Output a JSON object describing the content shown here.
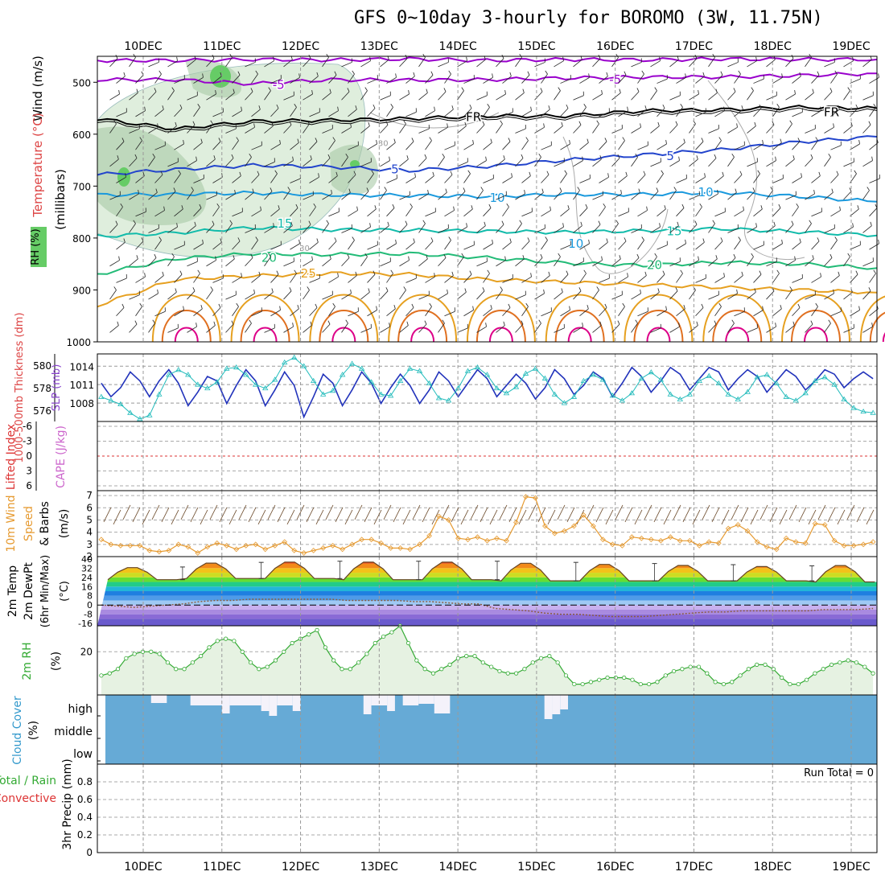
{
  "title": "GFS 0~10day 3-hourly for BOROMO (3W, 11.75N)",
  "colors": {
    "rh_fill": "#dfeedd",
    "rh_fill_dark": "#a9c9a6",
    "rh_green": "#66cc66",
    "isotherm_purple": "#9900cc",
    "isotherm_black": "#000000",
    "isotherm_blue": "#2244cc",
    "isotherm_lightblue": "#1a99dd",
    "isotherm_teal": "#11bbaa",
    "isotherm_green": "#22bb77",
    "isotherm_orange": "#e6a020",
    "isotherm_darkorange": "#e07020",
    "isotherm_magenta": "#dd0088",
    "thickness": "#2233bb",
    "slp": "#22bbbb",
    "wind10": "#e69a30",
    "cape_line": "#dd3333",
    "cloud_blue": "#66aad6",
    "cloud_white": "#f4f2fa",
    "rh2m_fill": "#e6f2e2",
    "rh2m_line": "#33aa33"
  },
  "dates": [
    "10DEC",
    "11DEC",
    "12DEC",
    "13DEC",
    "14DEC",
    "15DEC",
    "16DEC",
    "17DEC",
    "18DEC",
    "19DEC"
  ],
  "chart_data": [
    {
      "type": "area",
      "panel": "cross-section",
      "axis_title": "(millibars)",
      "left_labels": [
        "Wind (m/s)",
        "Temperature (°C)",
        "RH (%)"
      ],
      "yticks": [
        500,
        600,
        700,
        800,
        900,
        1000
      ],
      "ylim": [
        450,
        1000
      ],
      "isotherm_labels": [
        {
          "text": "-5",
          "x": 1.72,
          "p": 505
        },
        {
          "text": "-5",
          "x": 6.0,
          "p": 495
        },
        {
          "text": "FR",
          "x": 4.2,
          "p": 567
        },
        {
          "text": "FR",
          "x": 8.75,
          "p": 558
        },
        {
          "text": "5",
          "x": 3.2,
          "p": 668
        },
        {
          "text": "5",
          "x": 6.7,
          "p": 642
        },
        {
          "text": "10",
          "x": 4.5,
          "p": 723
        },
        {
          "text": "10",
          "x": 7.15,
          "p": 712
        },
        {
          "text": "15",
          "x": 1.8,
          "p": 772
        },
        {
          "text": "15",
          "x": 6.75,
          "p": 787
        },
        {
          "text": "20",
          "x": 1.6,
          "p": 838
        },
        {
          "text": "20",
          "x": 6.5,
          "p": 852
        },
        {
          "text": "25",
          "x": 2.1,
          "p": 868
        },
        {
          "text": "30",
          "x": 3.05,
          "p": 615
        },
        {
          "text": "30",
          "x": 2.05,
          "p": 817
        },
        {
          "text": "10",
          "x": 5.5,
          "p": 811
        }
      ],
      "isotherms": [
        {
          "label": "-5",
          "color": "#9900cc",
          "p": [
            458,
            458,
            456,
            457,
            455,
            458,
            456,
            457,
            455,
            456,
            456
          ]
        },
        {
          "label": "-5",
          "color": "#9900cc",
          "p": [
            495,
            495,
            503,
            495,
            496,
            495,
            492,
            490,
            490,
            487,
            483
          ]
        },
        {
          "label": "FR",
          "color": "#000000",
          "p": [
            570,
            590,
            575,
            573,
            570,
            565,
            565,
            555,
            553,
            548,
            550
          ]
        },
        {
          "label": "5",
          "color": "#2244cc",
          "p": [
            678,
            668,
            660,
            663,
            670,
            662,
            650,
            640,
            630,
            615,
            605
          ]
        },
        {
          "label": "10",
          "color": "#1a99dd",
          "p": [
            717,
            716,
            713,
            717,
            718,
            720,
            716,
            716,
            712,
            720,
            730
          ]
        },
        {
          "label": "15",
          "color": "#11bbaa",
          "p": [
            797,
            790,
            780,
            784,
            785,
            787,
            789,
            786,
            782,
            788,
            795
          ]
        },
        {
          "label": "20",
          "color": "#22bb77",
          "p": [
            870,
            840,
            830,
            832,
            830,
            838,
            848,
            853,
            847,
            850,
            858
          ]
        },
        {
          "label": "25",
          "color": "#e6a020",
          "p": [
            930,
            880,
            873,
            868,
            870,
            880,
            885,
            890,
            895,
            900,
            905
          ]
        }
      ]
    },
    {
      "type": "line",
      "panel": "thickness-slp",
      "left_labels": [
        "1000-500mb Thickness (dm)",
        "SLP (mb)"
      ],
      "thickness_ticks": [
        576,
        578,
        580
      ],
      "slp_ticks": [
        1008,
        1011,
        1014
      ],
      "series": [
        {
          "name": "1000-500mb Thickness (dm)",
          "color": "#2233bb",
          "ylim": [
            575,
            581
          ],
          "values": [
            578.4,
            577.2,
            578.0,
            579.4,
            578.6,
            577.2,
            578.6,
            579.6,
            578.4,
            576.4,
            577.6,
            579.0,
            578.6,
            576.6,
            578.2,
            579.6,
            578.6,
            576.4,
            577.8,
            579.4,
            578.2,
            575.4,
            577.2,
            579.2,
            578.4,
            576.4,
            577.8,
            579.4,
            578.4,
            576.6,
            578.0,
            579.2,
            578.2,
            576.6,
            577.8,
            579.4,
            578.6,
            577.2,
            578.4,
            579.6,
            578.8,
            577.2,
            578.2,
            579.2,
            578.4,
            577.0,
            578.0,
            579.6,
            578.8,
            577.4,
            578.2,
            579.4,
            578.8,
            577.2,
            578.4,
            579.8,
            579.0,
            577.6,
            578.6,
            579.8,
            579.2,
            577.8,
            578.8,
            579.8,
            579.4,
            577.8,
            578.8,
            579.6,
            579.0,
            577.6,
            578.6,
            579.6,
            579.0,
            577.8,
            578.6,
            579.6,
            579.2,
            578.0,
            578.8,
            579.4,
            578.8
          ]
        },
        {
          "name": "SLP (mb)",
          "color": "#22bbbb",
          "ylim": [
            1005,
            1016
          ],
          "values": [
            1009.0,
            1008.4,
            1007.8,
            1006.4,
            1005.4,
            1006.0,
            1009.4,
            1012.6,
            1013.4,
            1012.6,
            1011.0,
            1010.4,
            1011.4,
            1013.6,
            1013.8,
            1012.6,
            1011.0,
            1010.4,
            1011.8,
            1014.6,
            1015.4,
            1014.0,
            1011.6,
            1009.4,
            1010.0,
            1012.6,
            1014.4,
            1013.6,
            1011.4,
            1009.4,
            1009.2,
            1011.6,
            1013.6,
            1013.2,
            1011.2,
            1008.8,
            1008.4,
            1010.4,
            1013.2,
            1013.8,
            1012.6,
            1010.4,
            1009.6,
            1010.6,
            1012.8,
            1013.6,
            1012.0,
            1009.4,
            1008.0,
            1009.0,
            1011.6,
            1012.6,
            1011.8,
            1009.2,
            1008.4,
            1009.6,
            1012.0,
            1013.0,
            1011.8,
            1009.4,
            1008.6,
            1009.4,
            1011.6,
            1012.4,
            1011.2,
            1009.4,
            1008.6,
            1009.8,
            1012.2,
            1012.6,
            1011.2,
            1009.0,
            1008.4,
            1009.6,
            1011.6,
            1012.2,
            1011.0,
            1008.6,
            1007.2,
            1006.6,
            1006.4
          ]
        }
      ]
    },
    {
      "type": "line",
      "panel": "cape-li",
      "left_labels": [
        "Lifted Index",
        "CAPE (J/kg)"
      ],
      "yticks": [
        "-6",
        "-3",
        "0",
        "3",
        "6"
      ],
      "li_values": [],
      "cape_values": []
    },
    {
      "type": "line",
      "panel": "10m-wind",
      "left_labels": [
        "10m Wind Speed & Barbs",
        "(m/s)"
      ],
      "yticks": [
        2,
        3,
        4,
        5,
        6,
        7
      ],
      "ylim": [
        2,
        7.4
      ],
      "series": [
        {
          "name": "10m Wind Speed",
          "color": "#e69a30",
          "values": [
            3.4,
            3.0,
            2.9,
            2.9,
            2.9,
            2.5,
            2.4,
            2.5,
            3.0,
            2.8,
            2.3,
            2.8,
            3.1,
            2.9,
            2.6,
            2.9,
            3.0,
            2.6,
            2.9,
            3.2,
            2.5,
            2.3,
            2.5,
            2.7,
            2.9,
            2.6,
            3.0,
            3.4,
            3.4,
            3.1,
            2.7,
            2.7,
            2.6,
            3.0,
            3.7,
            5.3,
            5.0,
            3.5,
            3.4,
            3.6,
            3.3,
            3.5,
            3.3,
            4.8,
            6.9,
            6.8,
            4.5,
            3.9,
            4.1,
            4.5,
            5.4,
            4.5,
            3.4,
            3.0,
            2.9,
            3.6,
            3.5,
            3.4,
            3.3,
            3.6,
            3.3,
            3.3,
            2.9,
            3.2,
            3.1,
            4.3,
            4.6,
            4.1,
            3.2,
            2.8,
            2.6,
            3.5,
            3.2,
            3.1,
            4.7,
            4.6,
            3.3,
            2.9,
            2.9,
            3.0,
            3.2
          ]
        }
      ]
    },
    {
      "type": "area",
      "panel": "2m-temp",
      "left_labels": [
        "2m Temp",
        "2m DewPt",
        "(6hr Min/Max)",
        "(°C)"
      ],
      "yticks": [
        "40",
        "32",
        "24",
        "16",
        "8",
        "0",
        "-8",
        "-16"
      ],
      "ylim": [
        -18,
        42
      ],
      "temperature_max_per_day": [
        33,
        37,
        38,
        38,
        38,
        37,
        36,
        35,
        34,
        35
      ],
      "temperature_min_per_day": [
        22,
        23,
        23,
        22,
        22,
        21,
        21,
        21,
        21,
        20
      ],
      "dewpoint": [
        0,
        -1,
        -2,
        -1,
        0,
        1,
        3,
        4,
        4,
        5,
        5,
        5,
        5,
        5,
        5,
        4,
        4,
        4,
        4,
        3,
        3,
        2,
        1,
        1,
        -3,
        -4,
        -5,
        -7,
        -8,
        -8,
        -9,
        -10,
        -10,
        -10,
        -9,
        -8,
        -7,
        -6,
        -6,
        -5,
        -5,
        -5,
        -5,
        -5,
        -4,
        -4,
        -4,
        -3
      ]
    },
    {
      "type": "area",
      "panel": "2m-rh",
      "left_labels": [
        "2m RH",
        "(%)"
      ],
      "yticks": [
        20
      ],
      "ylim": [
        0,
        32
      ],
      "values": [
        9,
        10,
        12,
        17,
        19,
        20,
        20,
        19,
        15,
        12,
        12,
        15,
        18,
        22,
        25,
        26,
        25,
        20,
        15,
        12,
        13,
        16,
        20,
        24,
        26,
        28,
        30,
        22,
        16,
        12,
        12,
        15,
        19,
        24,
        27,
        29,
        32,
        24,
        16,
        12,
        10,
        12,
        14,
        17,
        18,
        18,
        15,
        13,
        11,
        10,
        10,
        12,
        15,
        17,
        18,
        15,
        9,
        5,
        5,
        6,
        7,
        8,
        8,
        8,
        7,
        5,
        5,
        6,
        9,
        11,
        12,
        13,
        13,
        10,
        6,
        5,
        6,
        9,
        12,
        14,
        14,
        12,
        8,
        5,
        5,
        7,
        10,
        12,
        14,
        15,
        16,
        15,
        13,
        10
      ]
    },
    {
      "type": "bar",
      "panel": "cloud-cover",
      "left_labels": [
        "Cloud Cover",
        "(%)"
      ],
      "levels": [
        "high",
        "middle",
        "low"
      ],
      "high_cloud_blocks": [
        {
          "start": 0.55,
          "end": 0.75,
          "top": 2
        },
        {
          "start": 1.05,
          "end": 1.45,
          "top": 5
        },
        {
          "start": 1.45,
          "end": 1.55,
          "top": 15
        },
        {
          "start": 1.55,
          "end": 1.95,
          "top": 5
        },
        {
          "start": 1.95,
          "end": 2.05,
          "top": 12
        },
        {
          "start": 2.05,
          "end": 2.15,
          "top": 18
        },
        {
          "start": 2.15,
          "end": 2.35,
          "top": 5
        },
        {
          "start": 2.35,
          "end": 2.45,
          "top": 12
        },
        {
          "start": 3.25,
          "end": 3.35,
          "top": 16
        },
        {
          "start": 3.35,
          "end": 3.55,
          "top": 5
        },
        {
          "start": 3.55,
          "end": 3.65,
          "top": 12
        },
        {
          "start": 3.75,
          "end": 3.95,
          "top": 5
        },
        {
          "start": 3.95,
          "end": 4.15,
          "top": 3
        },
        {
          "start": 4.15,
          "end": 4.35,
          "top": 15
        },
        {
          "start": 5.55,
          "end": 5.65,
          "top": 22
        },
        {
          "start": 5.65,
          "end": 5.75,
          "top": 16
        },
        {
          "start": 5.75,
          "end": 5.85,
          "top": 10
        }
      ]
    },
    {
      "type": "bar",
      "panel": "precip",
      "left_labels": [
        "Total / Rain",
        "Convective",
        "3hr Precip (mm)"
      ],
      "yticks": [
        "0",
        "0.2",
        "0.4",
        "0.6",
        "0.8"
      ],
      "ylim": [
        0,
        1
      ],
      "run_total_text": "Run Total = 0",
      "values": []
    }
  ]
}
